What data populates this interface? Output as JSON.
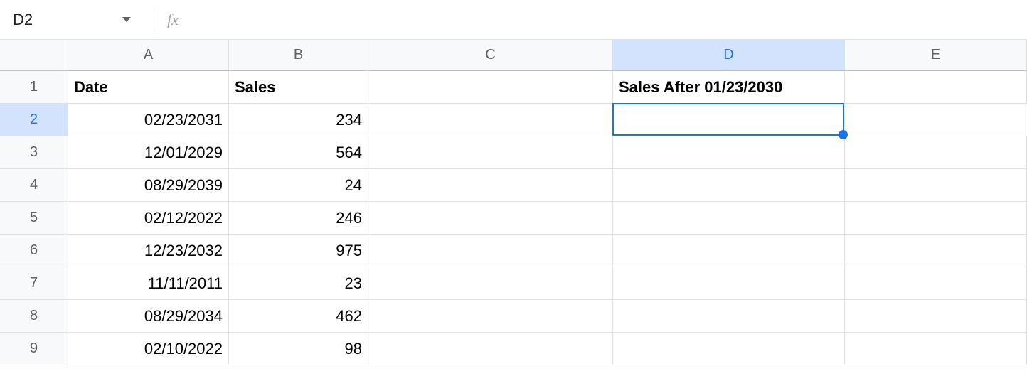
{
  "formula_bar": {
    "name_box_value": "D2",
    "fx_label": "fx",
    "formula_value": ""
  },
  "columns": [
    {
      "letter": "A",
      "selected": false
    },
    {
      "letter": "B",
      "selected": false
    },
    {
      "letter": "C",
      "selected": false
    },
    {
      "letter": "D",
      "selected": true
    },
    {
      "letter": "E",
      "selected": false
    }
  ],
  "row_headers": [
    {
      "num": "1",
      "selected": false
    },
    {
      "num": "2",
      "selected": true
    },
    {
      "num": "3",
      "selected": false
    },
    {
      "num": "4",
      "selected": false
    },
    {
      "num": "5",
      "selected": false
    },
    {
      "num": "6",
      "selected": false
    },
    {
      "num": "7",
      "selected": false
    },
    {
      "num": "8",
      "selected": false
    },
    {
      "num": "9",
      "selected": false
    }
  ],
  "header_row": {
    "A": "Date",
    "B": "Sales",
    "C": "",
    "D": "Sales After 01/23/2030",
    "E": ""
  },
  "data_rows": [
    {
      "A": "02/23/2031",
      "B": "234"
    },
    {
      "A": "12/01/2029",
      "B": "564"
    },
    {
      "A": "08/29/2039",
      "B": "24"
    },
    {
      "A": "02/12/2022",
      "B": "246"
    },
    {
      "A": "12/23/2032",
      "B": "975"
    },
    {
      "A": "11/11/2011",
      "B": "23"
    },
    {
      "A": "08/29/2034",
      "B": "462"
    },
    {
      "A": "02/10/2022",
      "B": "98"
    }
  ],
  "active_cell": "D2",
  "colors": {
    "selected_bg": "#d3e3fd",
    "selected_text": "#1a73e8",
    "header_bg": "#f8f9fa",
    "border": "#e0e0e0",
    "active_border": "#1a73e8"
  }
}
